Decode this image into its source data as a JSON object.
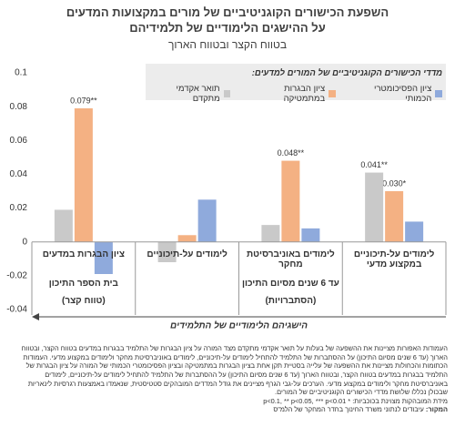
{
  "chart_data": {
    "type": "bar",
    "title": [
      "השפעת הכישורים הקוגניטיביים של מורים במקצועות המדעים",
      "על ההישגים הלימודיים של תלמידיהם"
    ],
    "subtitle": "בטווח הקצר ובטווח הארוך",
    "legend_title": "מדדי הכישורים הקוגניטיביים של המורים למדעים:",
    "categories": [
      "לימודים על-תיכוניים במקצוע מדעי",
      "לימודים באוניברסיטת מחקר",
      "לימודים על-תיכוניים",
      "ציון הבגרות במדעים"
    ],
    "series": [
      {
        "name": "ציון הפסיכומטרי הכמותי",
        "color": "#8faadc",
        "values": [
          0.012,
          0.008,
          0.025,
          -0.019
        ],
        "value_labels": [
          null,
          null,
          null,
          null
        ]
      },
      {
        "name": "ציון הבגרות במתמטיקה",
        "color": "#f4b183",
        "values": [
          0.03,
          0.048,
          0.004,
          0.079
        ],
        "value_labels": [
          "0.030*",
          "0.048**",
          null,
          "0.079**"
        ]
      },
      {
        "name": "תואר אקדמי מתקדם",
        "color": "#c9c9c9",
        "values": [
          0.041,
          0.01,
          -0.012,
          0.019
        ],
        "value_labels": [
          "0.041**",
          null,
          null,
          null
        ]
      }
    ],
    "group_labels": [
      {
        "label": "עד 6 שנים מסיום התיכון",
        "note": "(הסתברויות)"
      },
      {
        "label": "בית הספר התיכון",
        "note": "(טווח קצר)"
      }
    ],
    "x_axis_label": "הישגיהם הלימודיים של התלמידים",
    "ylim": [
      -0.04,
      0.1
    ],
    "yticks": [
      -0.04,
      -0.02,
      0,
      0.02,
      0.04,
      0.06,
      0.08,
      0.1
    ],
    "grid": false,
    "notes": [
      "העמודות האפורות מציינות את ההשפעה של בעלות על תואר אקדמי מתקדם מצד המורה על ציון הבגרות של התלמיד בבגרות במדעים בטווח הקצר, ובטווח הארוך (עד 6 שנים מסיום התיכון) על ההסתברות של התלמיד להתחיל לימודים על-תיכוניים, לימודים באוניברסיטת מחקר ולימודים במקצוע מדעי. העמודות הכתומות והכחולות מציינות את ההשפעה של עלייה בסטיית תקן אחת בציון הבגרות במתמטיקה ובציון הפסיכומטרי הכמותי של המורה על ציון הבגרות של התלמיד בבגרות במדעים בטווח הקצר, ובטווח הארוך (עד 6 שנים מסיום התיכון) על ההסתברות של התלמיד להתחיל לימודים על-תיכוניים, לימודים באוניברסיטת מחקר ולימודים במקצוע מדעי. הערכים על-גבי הגרף מציינים את גודל המדדים המובהקים סטטיסטית, שנאמדו באמצעות רגרסיות לינאריות שבכולן נכללו שלושת מדדי הכישורים הקוגניטיביים של המורים.",
      "מידת המובהקות מצוינת בכוכביות: * p<0.1, ** p<0.05, *** p<0.01"
    ],
    "source_label": "המקור:",
    "source": "עיבודים לנתוני משרד החינוך בחדר המחקר של הלמ\"ס"
  }
}
